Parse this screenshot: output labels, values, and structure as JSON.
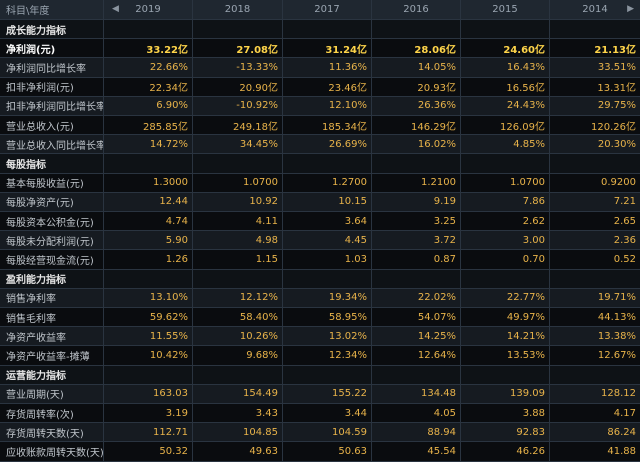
{
  "header": {
    "corner": "科目\\年度",
    "years": [
      "2019",
      "2018",
      "2017",
      "2016",
      "2015",
      "2014"
    ],
    "nav_left": "◀",
    "nav_right": "▶"
  },
  "rows": [
    {
      "type": "section",
      "label": "成长能力指标"
    },
    {
      "type": "data",
      "label": "净利润(元)",
      "values": [
        "33.22亿",
        "27.08亿",
        "31.24亿",
        "28.06亿",
        "24.60亿",
        "21.13亿"
      ],
      "highlight": true
    },
    {
      "type": "data",
      "label": "净利润同比增长率",
      "values": [
        "22.66%",
        "-13.33%",
        "11.36%",
        "14.05%",
        "16.43%",
        "33.51%"
      ]
    },
    {
      "type": "data",
      "label": "扣非净利润(元)",
      "values": [
        "22.34亿",
        "20.90亿",
        "23.46亿",
        "20.93亿",
        "16.56亿",
        "13.31亿"
      ]
    },
    {
      "type": "data",
      "label": "扣非净利润同比增长率",
      "values": [
        "6.90%",
        "-10.92%",
        "12.10%",
        "26.36%",
        "24.43%",
        "29.75%"
      ]
    },
    {
      "type": "data",
      "label": "营业总收入(元)",
      "values": [
        "285.85亿",
        "249.18亿",
        "185.34亿",
        "146.29亿",
        "126.09亿",
        "120.26亿"
      ]
    },
    {
      "type": "data",
      "label": "营业总收入同比增长率",
      "values": [
        "14.72%",
        "34.45%",
        "26.69%",
        "16.02%",
        "4.85%",
        "20.30%"
      ]
    },
    {
      "type": "section",
      "label": "每股指标"
    },
    {
      "type": "data",
      "label": "基本每股收益(元)",
      "values": [
        "1.3000",
        "1.0700",
        "1.2700",
        "1.2100",
        "1.0700",
        "0.9200"
      ]
    },
    {
      "type": "data",
      "label": "每股净资产(元)",
      "values": [
        "12.44",
        "10.92",
        "10.15",
        "9.19",
        "7.86",
        "7.21"
      ]
    },
    {
      "type": "data",
      "label": "每股资本公积金(元)",
      "values": [
        "4.74",
        "4.11",
        "3.64",
        "3.25",
        "2.62",
        "2.65"
      ]
    },
    {
      "type": "data",
      "label": "每股未分配利润(元)",
      "values": [
        "5.90",
        "4.98",
        "4.45",
        "3.72",
        "3.00",
        "2.36"
      ]
    },
    {
      "type": "data",
      "label": "每股经营现金流(元)",
      "values": [
        "1.26",
        "1.15",
        "1.03",
        "0.87",
        "0.70",
        "0.52"
      ]
    },
    {
      "type": "section",
      "label": "盈利能力指标"
    },
    {
      "type": "data",
      "label": "销售净利率",
      "values": [
        "13.10%",
        "12.12%",
        "19.34%",
        "22.02%",
        "22.77%",
        "19.71%"
      ]
    },
    {
      "type": "data",
      "label": "销售毛利率",
      "values": [
        "59.62%",
        "58.40%",
        "58.95%",
        "54.07%",
        "49.97%",
        "44.13%"
      ]
    },
    {
      "type": "data",
      "label": "净资产收益率",
      "values": [
        "11.55%",
        "10.26%",
        "13.02%",
        "14.25%",
        "14.21%",
        "13.38%"
      ]
    },
    {
      "type": "data",
      "label": "净资产收益率-摊薄",
      "values": [
        "10.42%",
        "9.68%",
        "12.34%",
        "12.64%",
        "13.53%",
        "12.67%"
      ]
    },
    {
      "type": "section",
      "label": "运营能力指标"
    },
    {
      "type": "data",
      "label": "营业周期(天)",
      "values": [
        "163.03",
        "154.49",
        "155.22",
        "134.48",
        "139.09",
        "128.12"
      ]
    },
    {
      "type": "data",
      "label": "存货周转率(次)",
      "values": [
        "3.19",
        "3.43",
        "3.44",
        "4.05",
        "3.88",
        "4.17"
      ]
    },
    {
      "type": "data",
      "label": "存货周转天数(天)",
      "values": [
        "112.71",
        "104.85",
        "104.59",
        "88.94",
        "92.83",
        "86.24"
      ]
    },
    {
      "type": "data",
      "label": "应收账款周转天数(天)",
      "values": [
        "50.32",
        "49.63",
        "50.63",
        "45.54",
        "46.26",
        "41.88"
      ]
    }
  ]
}
